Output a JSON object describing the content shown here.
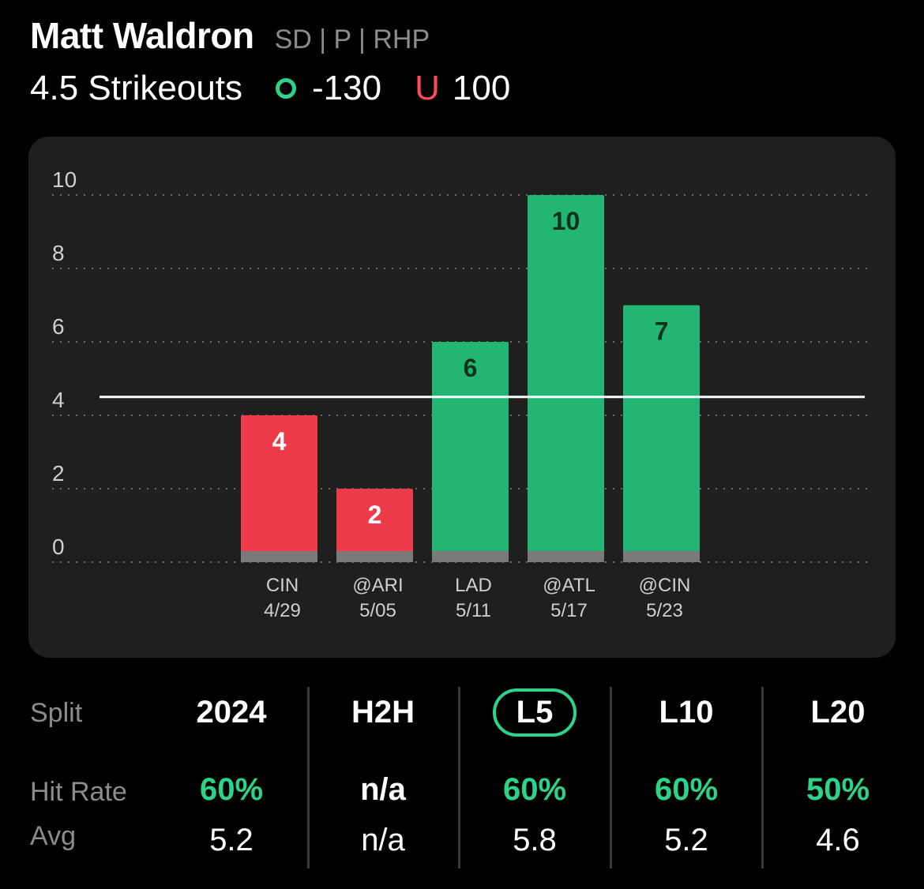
{
  "player": {
    "name": "Matt Waldron",
    "meta": "SD | P | RHP"
  },
  "prop": {
    "line_label": "4.5 Strikeouts",
    "over_odds": "-130",
    "under_letter": "U",
    "under_odds": "100"
  },
  "colors": {
    "over": "#2bd486",
    "under": "#ff4a57",
    "bar_over": "#22b573",
    "bar_under": "#ee3b4a"
  },
  "chart_data": {
    "type": "bar",
    "categories": [
      "CIN 4/29",
      "@ARI 5/05",
      "LAD 5/11",
      "@ATL 5/17",
      "@CIN 5/23"
    ],
    "category_lines": [
      [
        "CIN",
        "4/29"
      ],
      [
        "@ARI",
        "5/05"
      ],
      [
        "LAD",
        "5/11"
      ],
      [
        "@ATL",
        "5/17"
      ],
      [
        "@CIN",
        "5/23"
      ]
    ],
    "values": [
      4,
      2,
      6,
      10,
      7
    ],
    "hit": [
      false,
      false,
      true,
      true,
      true
    ],
    "line": 4.5,
    "yticks": [
      0,
      2,
      4,
      6,
      8,
      10
    ],
    "ylim": [
      0,
      10
    ],
    "grid": true
  },
  "splits": {
    "row_labels": {
      "split": "Split",
      "hit_rate": "Hit Rate",
      "avg": "Avg"
    },
    "columns": [
      {
        "label": "2024",
        "hit_rate": "60%",
        "avg": "5.2",
        "selected": false
      },
      {
        "label": "H2H",
        "hit_rate": "n/a",
        "avg": "n/a",
        "selected": false
      },
      {
        "label": "L5",
        "hit_rate": "60%",
        "avg": "5.8",
        "selected": true
      },
      {
        "label": "L10",
        "hit_rate": "60%",
        "avg": "5.2",
        "selected": false
      },
      {
        "label": "L20",
        "hit_rate": "50%",
        "avg": "4.6",
        "selected": false
      }
    ]
  }
}
